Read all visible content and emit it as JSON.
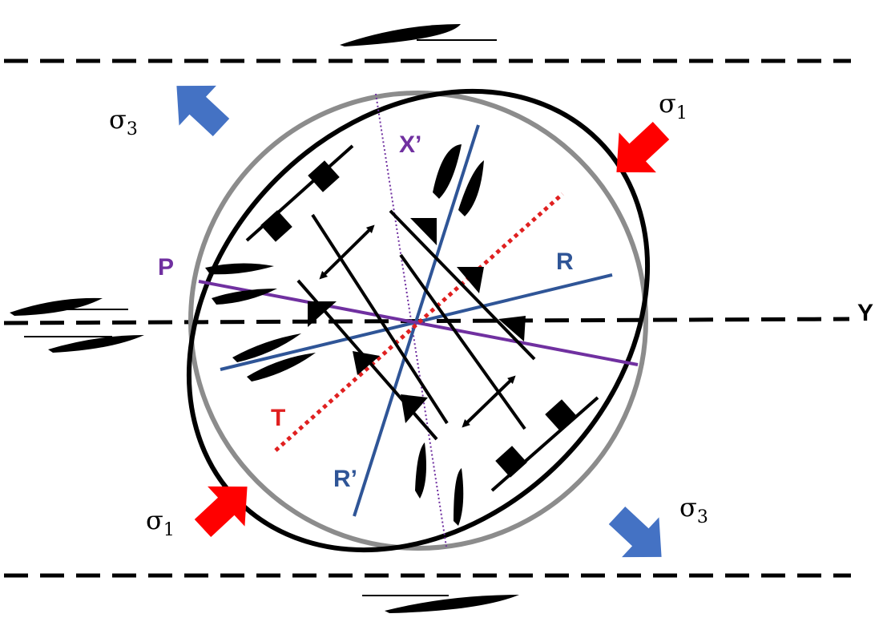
{
  "labels": {
    "p": "P",
    "r": "R",
    "r_prime": "R’",
    "t": "T",
    "x_prime": "X’",
    "y": "Y"
  },
  "stress": {
    "sigma_char": "σ",
    "sigma1_sub": "1",
    "sigma3_sub": "3"
  },
  "colors": {
    "p_line": "#7030a0",
    "r_line": "#2f5597",
    "t_line": "#e02020",
    "compression_arrow": "#ff0000",
    "extension_arrow": "#4472c4",
    "original_circle": "#8c8c8c",
    "strain_ellipse": "#000000"
  },
  "icons": [
    "compression-arrow-icon",
    "extension-arrow-icon",
    "double-headed-arrow-icon",
    "shear-sense-icon"
  ]
}
